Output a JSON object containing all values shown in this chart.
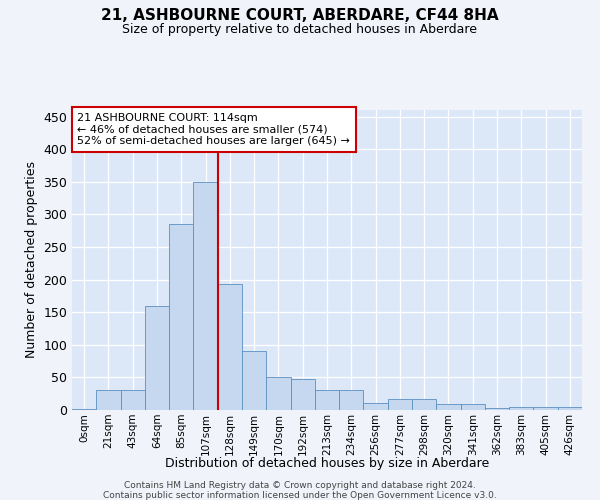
{
  "title": "21, ASHBOURNE COURT, ABERDARE, CF44 8HA",
  "subtitle": "Size of property relative to detached houses in Aberdare",
  "xlabel": "Distribution of detached houses by size in Aberdare",
  "ylabel": "Number of detached properties",
  "bar_color": "#c5d8f0",
  "bar_edge_color": "#5a8fc0",
  "background_color": "#dce8f8",
  "grid_color": "#ffffff",
  "bins": [
    "0sqm",
    "21sqm",
    "43sqm",
    "64sqm",
    "85sqm",
    "107sqm",
    "128sqm",
    "149sqm",
    "170sqm",
    "192sqm",
    "213sqm",
    "234sqm",
    "256sqm",
    "277sqm",
    "298sqm",
    "320sqm",
    "341sqm",
    "362sqm",
    "383sqm",
    "405sqm",
    "426sqm"
  ],
  "values": [
    1,
    30,
    30,
    160,
    285,
    350,
    193,
    90,
    50,
    48,
    30,
    30,
    10,
    17,
    17,
    9,
    9,
    3,
    5,
    5,
    4
  ],
  "vline_x": 5.5,
  "vline_color": "#cc0000",
  "annotation_line1": "21 ASHBOURNE COURT: 114sqm",
  "annotation_line2": "← 46% of detached houses are smaller (574)",
  "annotation_line3": "52% of semi-detached houses are larger (645) →",
  "annotation_box_color": "#ffffff",
  "annotation_box_edge": "#cc0000",
  "ylim": [
    0,
    460
  ],
  "yticks": [
    0,
    50,
    100,
    150,
    200,
    250,
    300,
    350,
    400,
    450
  ],
  "footer1": "Contains HM Land Registry data © Crown copyright and database right 2024.",
  "footer2": "Contains public sector information licensed under the Open Government Licence v3.0."
}
